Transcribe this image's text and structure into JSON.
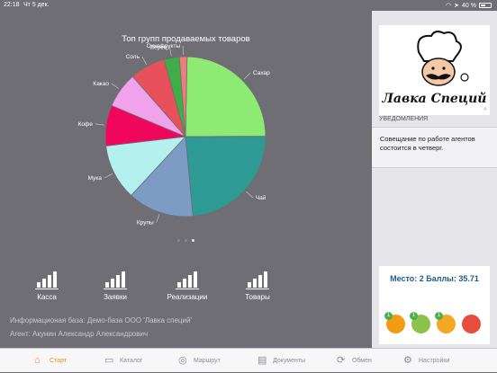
{
  "status_bar": {
    "time": "22:18",
    "date": "Чт 5 дек.",
    "battery": "40 %"
  },
  "chart_data": {
    "type": "pie",
    "title": "Топ групп продаваемых товаров",
    "slices": [
      {
        "label": "Сахар",
        "value": 24.0,
        "color": "#8deb74"
      },
      {
        "label": "Чай",
        "value": 23.0,
        "color": "#2e9a94"
      },
      {
        "label": "Крупы",
        "value": 13.0,
        "color": "#7d9cc4"
      },
      {
        "label": "Мука",
        "value": 11.0,
        "color": "#b3f0ee"
      },
      {
        "label": "Кофе",
        "value": 8.0,
        "color": "#f0065a"
      },
      {
        "label": "Какао",
        "value": 7.0,
        "color": "#f0a2ea"
      },
      {
        "label": "Соль",
        "value": 7.0,
        "color": "#e8505b"
      },
      {
        "label": "Перец",
        "value": 3.0,
        "color": "#3fae49"
      },
      {
        "label": "Сухофрукты",
        "value": 1.5,
        "color": "#f07c7c"
      }
    ]
  },
  "pager": {
    "count": 3,
    "active": 2
  },
  "tiles": [
    {
      "label": "Касса"
    },
    {
      "label": "Заявки"
    },
    {
      "label": "Реализации"
    },
    {
      "label": "Товары"
    }
  ],
  "info": {
    "database": "Информационая база: Демо-база ООО 'Лавка специй'",
    "agent": "Агент: Акунин Александр Александрович"
  },
  "sidebar": {
    "logo_text": "Лавка Специй",
    "notifications_header": "УВЕДОМЛЕНИЯ",
    "notification": "Совещание по работе агентов состоится в четверг.",
    "score": "Место: 2  Баллы: 35.71",
    "badges": [
      {
        "count": "1",
        "color": "#f39c12"
      },
      {
        "count": "1",
        "color": "#8bc34a"
      },
      {
        "count": "1",
        "color": "#f5a623"
      },
      {
        "count": "",
        "color": "#e74c3c"
      }
    ]
  },
  "tabbar": [
    {
      "label": "Старт",
      "icon": "home-icon",
      "active": true
    },
    {
      "label": "Каталог",
      "icon": "catalog-icon",
      "active": false
    },
    {
      "label": "Маршрут",
      "icon": "route-icon",
      "active": false
    },
    {
      "label": "Документы",
      "icon": "documents-icon",
      "active": false
    },
    {
      "label": "Обмен",
      "icon": "sync-icon",
      "active": false
    },
    {
      "label": "Настройки",
      "icon": "settings-icon",
      "active": false
    }
  ],
  "accent_color": "#f08a24"
}
